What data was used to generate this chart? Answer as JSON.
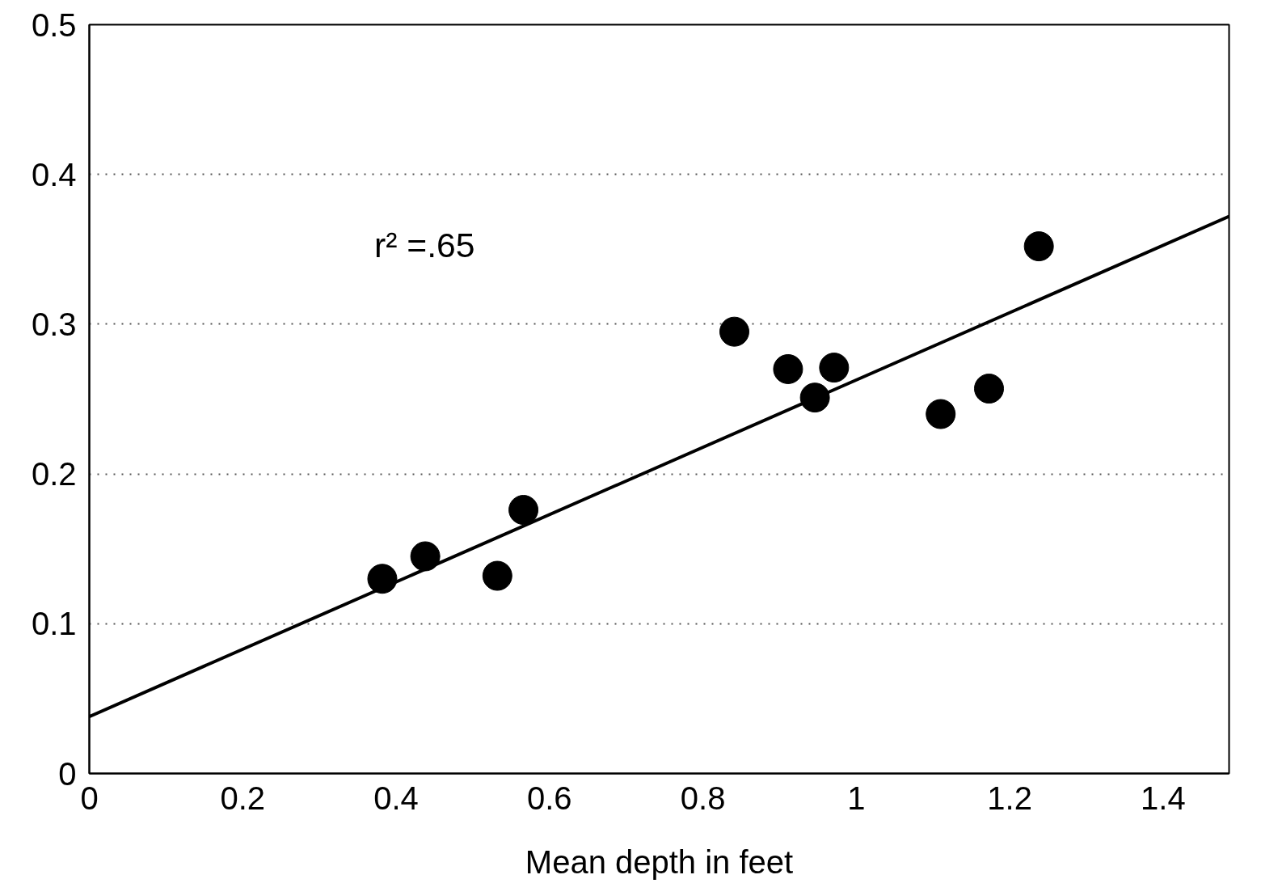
{
  "chart_data": {
    "type": "scatter",
    "xlabel": "Mean depth in feet",
    "xlim": [
      0,
      1.486
    ],
    "ylim": [
      0,
      0.5
    ],
    "xticks": [
      0,
      0.2,
      0.4,
      0.6,
      0.8,
      1,
      1.2,
      1.4
    ],
    "yticks": [
      0,
      0.1,
      0.2,
      0.3,
      0.4,
      0.5
    ],
    "grid": "y",
    "marker": "circle",
    "annotations": [
      "r² =.65"
    ],
    "series": [
      {
        "color": "#000000",
        "x": [
          0.382,
          0.438,
          0.532,
          0.566,
          0.841,
          0.911,
          0.946,
          0.971,
          1.11,
          1.173,
          1.238
        ],
        "values": [
          0.13,
          0.145,
          0.132,
          0.176,
          0.295,
          0.27,
          0.251,
          0.271,
          0.24,
          0.257,
          0.352
        ]
      },
      {
        "type": "line",
        "color": "#000000",
        "line_style": "solid",
        "marker": "none",
        "x": [
          0,
          1.486
        ],
        "values": [
          0.038,
          0.372
        ]
      }
    ]
  }
}
